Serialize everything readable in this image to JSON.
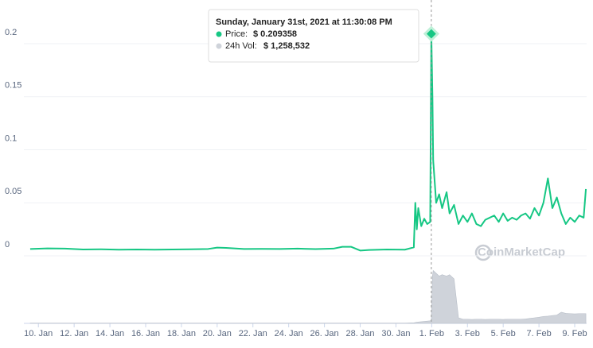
{
  "chart_data": {
    "type": "line",
    "x": [
      "2021-01-09T13:00:00",
      "2021-01-10T12:00:00",
      "2021-01-11T12:00:00",
      "2021-01-12T12:00:00",
      "2021-01-13T12:00:00",
      "2021-01-14T12:00:00",
      "2021-01-15T12:00:00",
      "2021-01-16T12:00:00",
      "2021-01-17T12:00:00",
      "2021-01-18T12:00:00",
      "2021-01-19T12:00:00",
      "2021-01-20T00:00:00",
      "2021-01-20T12:00:00",
      "2021-01-21T12:00:00",
      "2021-01-22T12:00:00",
      "2021-01-23T12:00:00",
      "2021-01-24T12:00:00",
      "2021-01-25T12:00:00",
      "2021-01-26T12:00:00",
      "2021-01-27T00:00:00",
      "2021-01-27T12:00:00",
      "2021-01-28T00:00:00",
      "2021-01-28T12:00:00",
      "2021-01-29T12:00:00",
      "2021-01-30T12:00:00",
      "2021-01-31T00:00:00",
      "2021-01-31T02:00:00",
      "2021-01-31T04:00:00",
      "2021-01-31T06:00:00",
      "2021-01-31T10:00:00",
      "2021-01-31T14:00:00",
      "2021-01-31T18:00:00",
      "2021-01-31T22:00:00",
      "2021-01-31T23:30:08",
      "2021-02-01T01:00:00",
      "2021-02-01T02:00:00",
      "2021-02-01T04:00:00",
      "2021-02-01T06:00:00",
      "2021-02-01T10:00:00",
      "2021-02-01T14:00:00",
      "2021-02-01T20:00:00",
      "2021-02-02T00:00:00",
      "2021-02-02T06:00:00",
      "2021-02-02T12:00:00",
      "2021-02-02T18:00:00",
      "2021-02-03T00:00:00",
      "2021-02-03T06:00:00",
      "2021-02-03T12:00:00",
      "2021-02-03T18:00:00",
      "2021-02-04T00:00:00",
      "2021-02-04T06:00:00",
      "2021-02-04T12:00:00",
      "2021-02-04T18:00:00",
      "2021-02-05T00:00:00",
      "2021-02-05T06:00:00",
      "2021-02-05T12:00:00",
      "2021-02-05T18:00:00",
      "2021-02-06T00:00:00",
      "2021-02-06T06:00:00",
      "2021-02-06T12:00:00",
      "2021-02-06T18:00:00",
      "2021-02-07T00:00:00",
      "2021-02-07T06:00:00",
      "2021-02-07T12:00:00",
      "2021-02-07T18:00:00",
      "2021-02-08T00:00:00",
      "2021-02-08T06:00:00",
      "2021-02-08T12:00:00",
      "2021-02-08T18:00:00",
      "2021-02-09T00:00:00",
      "2021-02-09T06:00:00",
      "2021-02-09T12:00:00",
      "2021-02-09T15:00:00"
    ],
    "series": [
      {
        "name": "Price",
        "color": "#16c784",
        "values": [
          0.0065,
          0.007,
          0.0068,
          0.006,
          0.0062,
          0.0058,
          0.006,
          0.0058,
          0.006,
          0.0062,
          0.0065,
          0.0078,
          0.0075,
          0.0065,
          0.0066,
          0.0065,
          0.0068,
          0.0064,
          0.0068,
          0.0085,
          0.0085,
          0.005,
          0.0055,
          0.006,
          0.0058,
          0.008,
          0.05,
          0.025,
          0.045,
          0.028,
          0.035,
          0.03,
          0.032,
          0.209358,
          0.15,
          0.09,
          0.07,
          0.05,
          0.058,
          0.045,
          0.06,
          0.04,
          0.048,
          0.03,
          0.038,
          0.032,
          0.04,
          0.03,
          0.028,
          0.034,
          0.036,
          0.038,
          0.032,
          0.04,
          0.033,
          0.036,
          0.034,
          0.038,
          0.04,
          0.035,
          0.045,
          0.038,
          0.05,
          0.073,
          0.045,
          0.055,
          0.04,
          0.03,
          0.036,
          0.032,
          0.038,
          0.036,
          0.063
        ]
      },
      {
        "name": "24h Vol",
        "color": "#cfd3da",
        "axis": "y2",
        "values": [
          100000,
          100000,
          100000,
          100000,
          100000,
          100000,
          100000,
          100000,
          100000,
          100000,
          100000,
          100000,
          100000,
          100000,
          100000,
          100000,
          100000,
          100000,
          100000,
          100000,
          100000,
          100000,
          100000,
          100000,
          100000,
          200000,
          300000,
          400000,
          500000,
          600000,
          700000,
          800000,
          900000,
          1258532,
          17000000,
          19000000,
          18500000,
          18000000,
          17000000,
          17500000,
          17000000,
          17500000,
          16000000,
          2000000,
          1500000,
          1500000,
          1400000,
          1500000,
          1500000,
          1400000,
          1500000,
          1500000,
          1500000,
          1400000,
          1500000,
          1500000,
          1500000,
          1500000,
          1600000,
          1800000,
          2000000,
          2200000,
          2500000,
          2600000,
          2800000,
          3000000,
          4000000,
          3600000,
          3500000,
          3400000,
          3500000,
          3500000,
          3500000
        ]
      }
    ],
    "xlim": [
      "2021-01-09T12:00:00",
      "2021-02-09T16:00:00"
    ],
    "xticks": [
      {
        "value": "2021-01-10T00:00:00",
        "label": "10. Jan"
      },
      {
        "value": "2021-01-12T00:00:00",
        "label": "12. Jan"
      },
      {
        "value": "2021-01-14T00:00:00",
        "label": "14. Jan"
      },
      {
        "value": "2021-01-16T00:00:00",
        "label": "16. Jan"
      },
      {
        "value": "2021-01-18T00:00:00",
        "label": "18. Jan"
      },
      {
        "value": "2021-01-20T00:00:00",
        "label": "20. Jan"
      },
      {
        "value": "2021-01-22T00:00:00",
        "label": "22. Jan"
      },
      {
        "value": "2021-01-24T00:00:00",
        "label": "24. Jan"
      },
      {
        "value": "2021-01-26T00:00:00",
        "label": "26. Jan"
      },
      {
        "value": "2021-01-28T00:00:00",
        "label": "28. Jan"
      },
      {
        "value": "2021-01-30T00:00:00",
        "label": "30. Jan"
      },
      {
        "value": "2021-02-01T00:00:00",
        "label": "1. Feb"
      },
      {
        "value": "2021-02-03T00:00:00",
        "label": "3. Feb"
      },
      {
        "value": "2021-02-05T00:00:00",
        "label": "5. Feb"
      },
      {
        "value": "2021-02-07T00:00:00",
        "label": "7. Feb"
      },
      {
        "value": "2021-02-09T00:00:00",
        "label": "9. Feb"
      }
    ],
    "ylim": [
      0,
      0.2
    ],
    "yticks": [
      0,
      0.05,
      0.1,
      0.15,
      0.2
    ],
    "y2lim": [
      0,
      20000000
    ],
    "grid": true,
    "watermark": "CoinMarketCap",
    "tooltip": {
      "title": "Sunday, January 31st, 2021 at 11:30:08 PM",
      "price_label": "Price:",
      "price": "$ 0.209358",
      "vol_label": "24h Vol:",
      "vol": "$ 1,258,532"
    }
  }
}
